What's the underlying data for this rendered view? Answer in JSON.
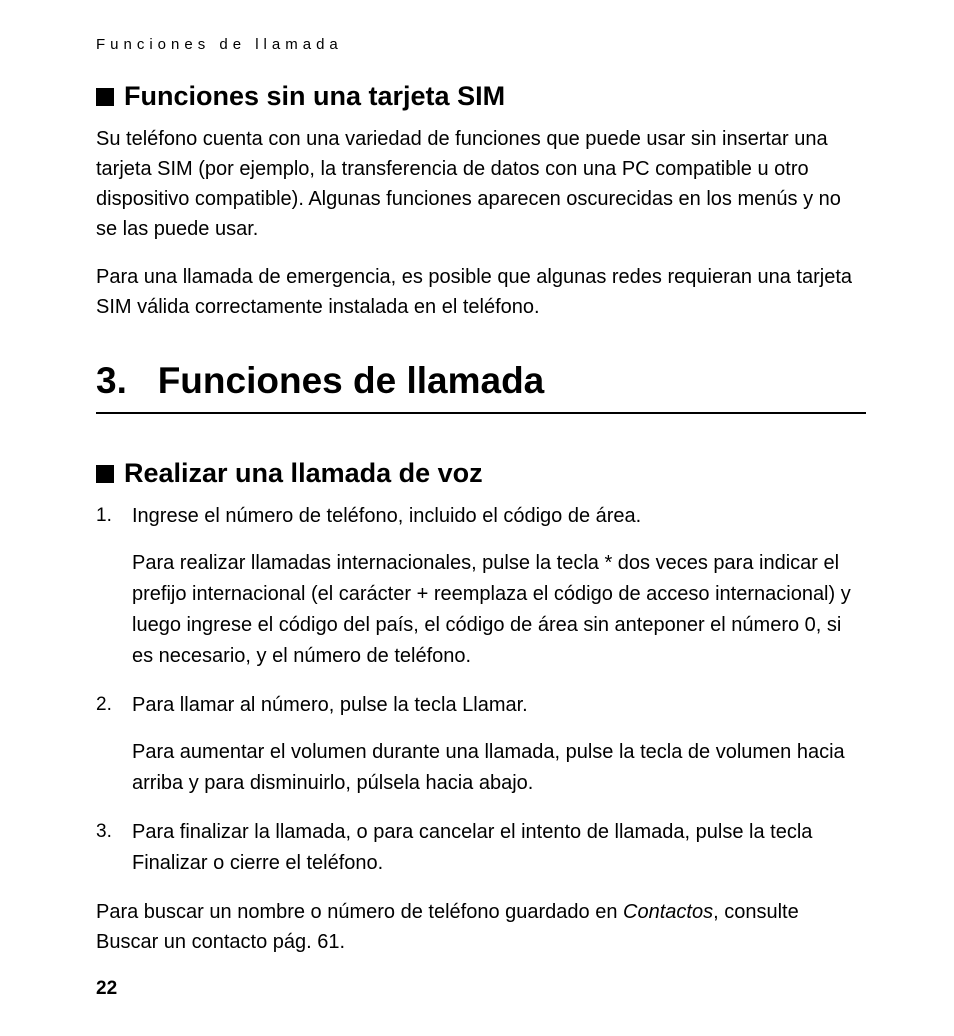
{
  "runningHeader": "Funciones de llamada",
  "section1": {
    "heading": "Funciones sin una tarjeta SIM",
    "para1": "Su teléfono cuenta con una variedad de funciones que puede usar sin insertar una tarjeta SIM (por ejemplo, la transferencia de datos con una PC compatible u otro dispositivo compatible). Algunas funciones aparecen oscurecidas en los menús y no se las puede usar.",
    "para2": "Para una llamada de emergencia, es posible que algunas redes requieran una tarjeta SIM válida correctamente instalada en el teléfono."
  },
  "chapter": {
    "number": "3.",
    "title": "Funciones de llamada"
  },
  "section2": {
    "heading": "Realizar una llamada de voz",
    "steps": [
      {
        "num": "1.",
        "text": "Ingrese el número de teléfono, incluido el código de área.",
        "extra": "Para realizar llamadas internacionales, pulse la tecla * dos veces para indicar el prefijo internacional (el carácter + reemplaza el código de acceso internacional) y luego ingrese el código del país, el código de área sin anteponer el número 0, si es necesario, y el número de teléfono."
      },
      {
        "num": "2.",
        "text": "Para llamar al número, pulse la tecla Llamar.",
        "extra": "Para aumentar el volumen durante una llamada, pulse la tecla de volumen hacia arriba y para disminuirlo, púlsela hacia abajo."
      },
      {
        "num": "3.",
        "text": "Para finalizar la llamada, o para cancelar el intento de llamada, pulse la tecla Finalizar o cierre el teléfono.",
        "extra": ""
      }
    ],
    "trailingBefore": "Para buscar un nombre o número de teléfono guardado en ",
    "trailingItalic": "Contactos",
    "trailingAfter": ", consulte Buscar un contacto pág. 61."
  },
  "pageNumber": "22",
  "style": {
    "pageWidth": 954,
    "pageHeight": 1036,
    "background": "#ffffff",
    "textColor": "#000000",
    "bulletColor": "#000000",
    "ruleColor": "#000000",
    "bodyFontSize": 20,
    "subHeadingFontSize": 27,
    "chapterFontSize": 37,
    "runningHeaderFontSize": 15,
    "runningHeaderLetterSpacing": 5,
    "pageNumberFontSize": 19
  }
}
